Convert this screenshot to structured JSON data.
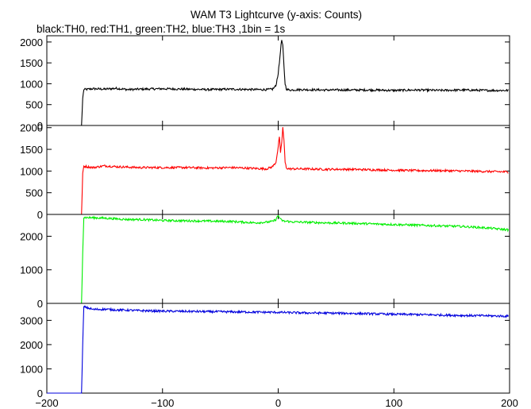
{
  "title": "WAM T3 Lightcurve (y-axis: Counts)",
  "subtitle": "black:TH0, red:TH1, green:TH2, blue:TH3 ,1bin = 1s",
  "chart_data": {
    "type": "line",
    "title": "WAM T3 Lightcurve (y-axis: Counts)",
    "subtitle": "black:TH0, red:TH1, green:TH2, blue:TH3 ,1bin = 1s",
    "xlim": [
      -200,
      200
    ],
    "x_ticks": [
      -200,
      -100,
      0,
      100,
      200
    ],
    "x_tick_labels": [
      "−200",
      "−100",
      "0",
      "100",
      "200"
    ],
    "grid": false,
    "panels": [
      {
        "color": "#000000",
        "ylim": [
          0,
          2150
        ],
        "y_ticks": [
          0,
          500,
          1000,
          1500,
          2000
        ],
        "y_tick_labels": [
          "0",
          "500",
          "1000",
          "1500",
          "2000"
        ],
        "series": [
          {
            "x": [
              -200,
              -170,
              -169,
              -168,
              -160,
              -150,
              -140,
              -130,
              -120,
              -100,
              -80,
              -60,
              -40,
              -20,
              -10,
              -5,
              -2,
              0,
              1,
              2,
              3,
              4,
              5,
              6,
              7,
              8,
              10,
              20,
              40,
              60,
              80,
              100,
              120,
              140,
              160,
              180,
              199
            ],
            "y": [
              0,
              0,
              650,
              860,
              880,
              870,
              890,
              860,
              870,
              880,
              870,
              860,
              870,
              860,
              860,
              870,
              950,
              1250,
              1500,
              1800,
              2050,
              1900,
              1400,
              1000,
              880,
              860,
              850,
              860,
              850,
              850,
              850,
              840,
              850,
              840,
              850,
              840,
              840
            ]
          }
        ]
      },
      {
        "color": "#ff0000",
        "ylim": [
          0,
          2050
        ],
        "y_ticks": [
          0,
          500,
          1000,
          1500,
          2000
        ],
        "y_tick_labels": [
          "0",
          "500",
          "1000",
          "1500",
          "2000"
        ],
        "series": [
          {
            "x": [
              -200,
              -170,
              -169,
              -168,
              -160,
              -150,
              -140,
              -130,
              -120,
              -100,
              -80,
              -60,
              -40,
              -20,
              -10,
              -5,
              -2,
              0,
              1,
              2,
              3,
              4,
              5,
              6,
              7,
              8,
              10,
              20,
              40,
              60,
              80,
              100,
              120,
              140,
              160,
              180,
              199
            ],
            "y": [
              0,
              0,
              950,
              1110,
              1080,
              1120,
              1100,
              1090,
              1080,
              1080,
              1080,
              1070,
              1080,
              1060,
              1050,
              1100,
              1200,
              1550,
              1800,
              1400,
              1650,
              2000,
              1700,
              1200,
              1080,
              1060,
              1050,
              1050,
              1040,
              1040,
              1030,
              1020,
              1010,
              1010,
              1000,
              990,
              980
            ]
          }
        ]
      },
      {
        "color": "#00ee00",
        "ylim": [
          0,
          2650
        ],
        "y_ticks": [
          0,
          1000,
          2000
        ],
        "y_tick_labels": [
          "0",
          "1000",
          "2000"
        ],
        "series": [
          {
            "x": [
              -200,
              -170,
              -169,
              -168,
              -160,
              -150,
              -140,
              -130,
              -120,
              -100,
              -80,
              -60,
              -40,
              -20,
              -10,
              -5,
              -2,
              0,
              2,
              4,
              6,
              8,
              10,
              20,
              40,
              60,
              80,
              100,
              120,
              140,
              160,
              180,
              199
            ],
            "y": [
              0,
              0,
              1500,
              2560,
              2550,
              2540,
              2520,
              2500,
              2500,
              2470,
              2460,
              2450,
              2440,
              2400,
              2420,
              2440,
              2500,
              2620,
              2500,
              2460,
              2440,
              2450,
              2430,
              2420,
              2400,
              2390,
              2370,
              2350,
              2330,
              2310,
              2290,
              2250,
              2190
            ]
          }
        ]
      },
      {
        "color": "#0000dd",
        "ylim": [
          0,
          3700
        ],
        "y_ticks": [
          0,
          1000,
          2000,
          3000
        ],
        "y_tick_labels": [
          "0",
          "1000",
          "2000",
          "3000"
        ],
        "series": [
          {
            "x": [
              -200,
              -170,
              -169,
              -168,
              -160,
              -150,
              -140,
              -130,
              -120,
              -100,
              -80,
              -60,
              -40,
              -20,
              0,
              20,
              40,
              60,
              80,
              100,
              120,
              140,
              160,
              180,
              199
            ],
            "y": [
              0,
              0,
              2000,
              3560,
              3450,
              3460,
              3430,
              3420,
              3400,
              3380,
              3370,
              3360,
              3350,
              3340,
              3330,
              3310,
              3300,
              3290,
              3270,
              3250,
              3240,
              3220,
              3200,
              3190,
              3170
            ]
          }
        ]
      }
    ]
  }
}
